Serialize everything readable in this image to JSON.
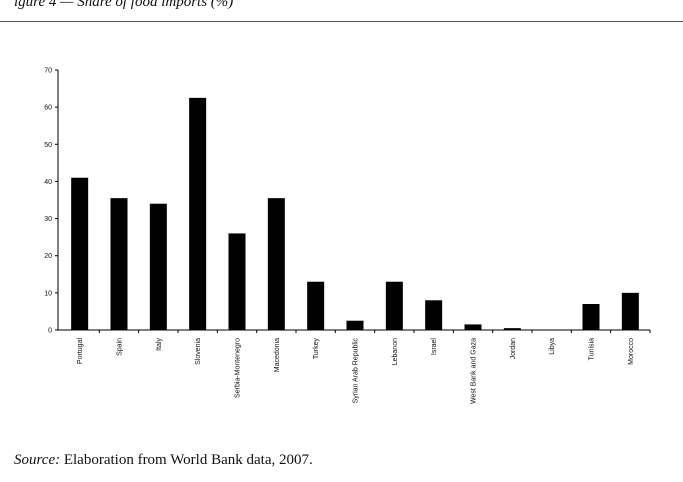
{
  "header": {
    "caption": "igure 4 — Share of food imports (%)"
  },
  "chart_data": {
    "type": "bar",
    "categories": [
      "Portugal",
      "Spain",
      "Italy",
      "Slovenia",
      "Serbia-Montenegro",
      "Macedonia",
      "Turkey",
      "Syrian Arab Republic",
      "Lebanon",
      "Israel",
      "West Bank and Gaza",
      "Jordan",
      "Libya",
      "Tunisia",
      "Morocco"
    ],
    "values": [
      41,
      35.5,
      34,
      62.5,
      26,
      35.5,
      13,
      2.5,
      13,
      8,
      1.5,
      0.5,
      0,
      7,
      10
    ],
    "yticks": [
      "0",
      "10",
      "20",
      "30",
      "40",
      "50",
      "60",
      "70"
    ],
    "ylim": [
      0,
      70
    ],
    "bar_color": "#000000",
    "grid": false,
    "legend": "none"
  },
  "footer": {
    "source_label": "Source:",
    "source_text": " Elaboration from World Bank data, 2007."
  }
}
